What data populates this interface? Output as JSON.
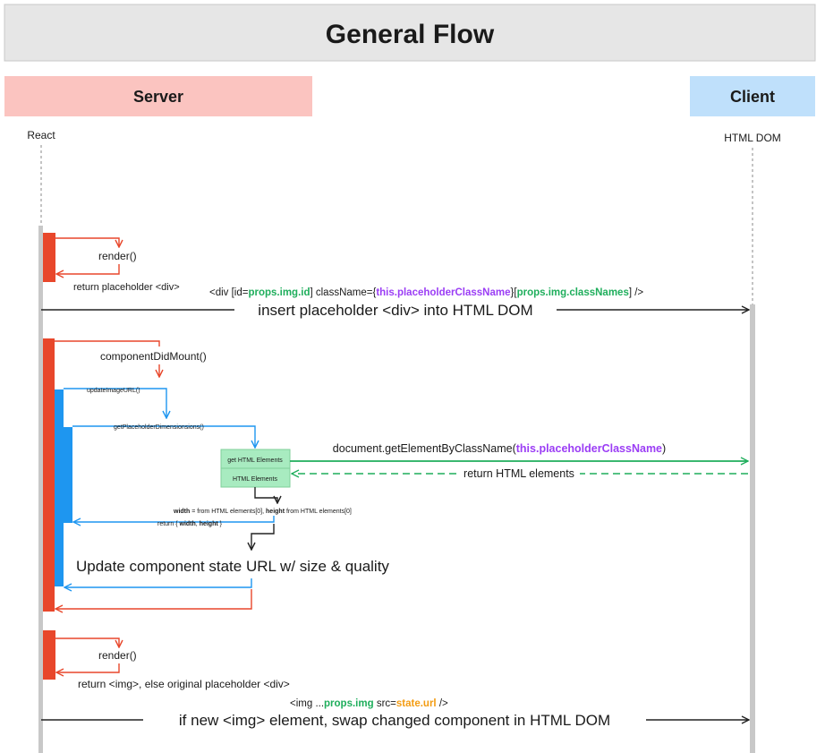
{
  "title": "General Flow",
  "lanes": {
    "server": "Server",
    "client": "Client"
  },
  "actors": {
    "left": "React",
    "right": "HTML DOM"
  },
  "steps": {
    "render_1": "render()",
    "return_placeholder": "return placeholder <div>",
    "insert": "insert placeholder <div> into HTML DOM",
    "did_mount": "componentDidMount()",
    "update_url": "updateImageURL()",
    "get_dims": "getPlaceholderDimensionsions()",
    "box_get": "get HTML Elements",
    "box_html": "HTML Elements",
    "return_elements": "return HTML elements",
    "update_state": "Update component state URL w/ size & quality",
    "render_2": "render()",
    "return_img": "return <img>, else original placeholder <div>",
    "swap": "if new <img> element, swap changed component in HTML DOM"
  },
  "code": {
    "div": {
      "p1": "<div [id=",
      "p2": "props.img.id",
      "p3": "] className={",
      "p4": "this.placeholderClassName",
      "p5": "}[",
      "p6": "props.img.classNames",
      "p7": "] />"
    },
    "get_by_class": {
      "p1": "document.getElementByClassName(",
      "p2": "this.placeholderClassName",
      "p3": ")"
    },
    "dims": {
      "w_key": "width",
      "w_rest": " = from HTML elements[0], ",
      "h_key": "height",
      "h_rest": " from HTML elements[0]"
    },
    "ret": {
      "p1": "return { ",
      "p2": "width",
      "p3": ", ",
      "p4": "height",
      "p5": " }"
    },
    "img": {
      "p1": "<img ...",
      "p2": "props.img",
      "p3": " src=",
      "p4": "state.url",
      "p5": " />"
    }
  },
  "colors": {
    "header_bg": "#e6e6e6",
    "server_bg": "#fbc4c0",
    "client_bg": "#bfe0fb",
    "red": "#e8472b",
    "blue": "#1e96f0",
    "green": "#1fae5c",
    "purple": "#9b3df5",
    "orange": "#f39c12",
    "box_green": "#a8ebc0"
  }
}
